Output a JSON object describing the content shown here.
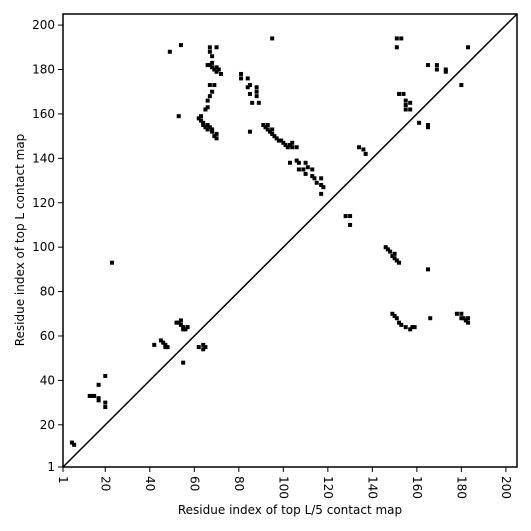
{
  "chart_data": {
    "type": "scatter",
    "xlabel": "Residue index of top L/5 contact map",
    "ylabel": "Residue index of top L contact map",
    "xlim": [
      1,
      205
    ],
    "ylim": [
      1,
      205
    ],
    "xticks": [
      1,
      20,
      40,
      60,
      80,
      100,
      120,
      140,
      160,
      180,
      200
    ],
    "yticks": [
      1,
      20,
      40,
      60,
      80,
      100,
      120,
      140,
      160,
      180,
      200
    ],
    "diagonal": true,
    "series": [
      {
        "color": "#000000",
        "x": [
          5,
          6,
          13,
          14,
          15,
          17,
          17,
          17,
          20,
          20,
          20,
          23,
          42,
          45,
          46,
          47,
          47,
          48,
          52,
          53,
          54,
          54,
          55,
          55,
          56,
          57,
          55,
          62,
          64,
          64,
          65,
          49,
          54,
          53,
          62,
          63,
          63,
          64,
          64,
          65,
          66,
          66,
          67,
          68,
          68,
          69,
          70,
          70,
          65,
          66,
          66,
          67,
          68,
          66,
          67,
          68,
          68,
          69,
          70,
          70,
          71,
          72,
          68,
          67,
          67,
          70,
          67,
          69,
          81,
          81,
          84,
          84,
          85,
          88,
          88,
          88,
          86,
          89,
          85,
          85,
          95,
          91,
          92,
          93,
          93,
          94,
          95,
          95,
          96,
          97,
          98,
          99,
          100,
          101,
          102,
          103,
          104,
          104,
          106,
          103,
          106,
          107,
          107,
          109,
          110,
          110,
          111,
          113,
          113,
          114,
          115,
          117,
          118,
          117,
          117,
          128,
          130,
          130,
          134,
          136,
          137,
          151,
          153,
          151,
          152,
          154,
          155,
          155,
          157,
          155,
          157,
          161,
          165,
          165,
          165,
          169,
          169,
          173,
          173,
          180,
          183,
          146,
          147,
          148,
          149,
          150,
          151,
          152,
          150,
          165,
          149,
          150,
          151,
          152,
          153,
          155,
          157,
          158,
          159,
          166,
          178,
          180,
          181,
          182,
          183,
          183,
          180
        ],
        "values": [
          12,
          11,
          33,
          33,
          33,
          38,
          32,
          31,
          42,
          30,
          28,
          93,
          56,
          58,
          57,
          56,
          55,
          55,
          66,
          66,
          67,
          65,
          64,
          63,
          63,
          64,
          48,
          55,
          56,
          54,
          55,
          188,
          191,
          159,
          158,
          157,
          159,
          156,
          155,
          154,
          155,
          153,
          154,
          152,
          153,
          150,
          151,
          149,
          162,
          163,
          166,
          168,
          170,
          182,
          182,
          183,
          181,
          180,
          181,
          179,
          180,
          178,
          186,
          188,
          190,
          190,
          173,
          173,
          178,
          176,
          176,
          172,
          173,
          172,
          170,
          168,
          165,
          165,
          169,
          152,
          194,
          155,
          154,
          155,
          153,
          152,
          151,
          153,
          150,
          149,
          148,
          148,
          147,
          146,
          145,
          146,
          145,
          147,
          145,
          138,
          139,
          138,
          135,
          135,
          133,
          138,
          136,
          135,
          132,
          131,
          129,
          128,
          127,
          131,
          124,
          114,
          114,
          110,
          145,
          144,
          142,
          194,
          194,
          190,
          169,
          169,
          166,
          164,
          165,
          162,
          162,
          156,
          155,
          154,
          182,
          182,
          180,
          180,
          179,
          173,
          190,
          100,
          99,
          98,
          96,
          95,
          94,
          93,
          97,
          90,
          70,
          69,
          68,
          66,
          65,
          64,
          63,
          64,
          64,
          68,
          70,
          70,
          68,
          67,
          66,
          68,
          68
        ]
      }
    ]
  }
}
